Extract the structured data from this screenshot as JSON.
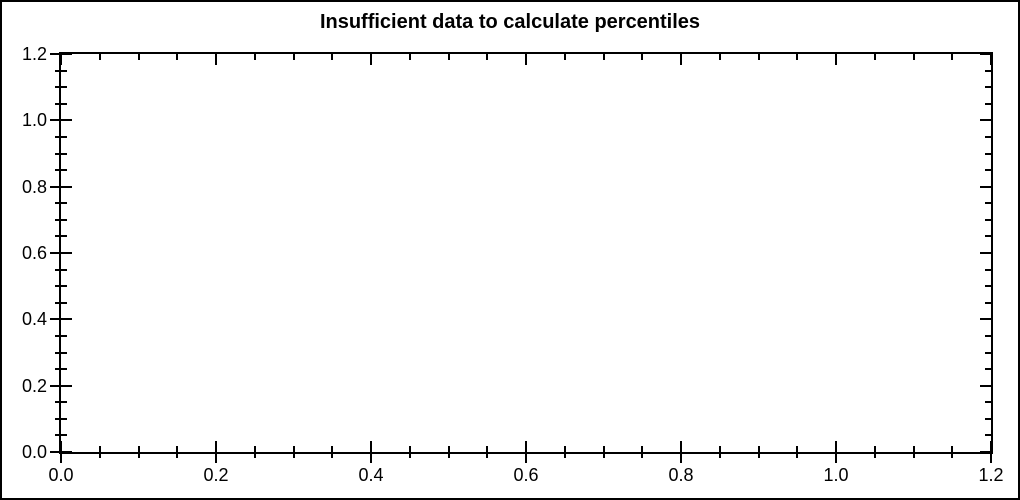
{
  "title": "Insufficient data to calculate percentiles",
  "chart_data": {
    "type": "scatter",
    "title": "Insufficient data to calculate percentiles",
    "series": [],
    "xlabel": "",
    "ylabel": "",
    "xlim": [
      0.0,
      1.2
    ],
    "ylim": [
      0.0,
      1.2
    ],
    "x_major_ticks": [
      0.0,
      0.2,
      0.4,
      0.6,
      0.8,
      1.0,
      1.2
    ],
    "y_major_ticks": [
      0.0,
      0.2,
      0.4,
      0.6,
      0.8,
      1.0,
      1.2
    ],
    "x_tick_labels": [
      "0.0",
      "0.2",
      "0.4",
      "0.6",
      "0.8",
      "1.0",
      "1.2"
    ],
    "y_tick_labels": [
      "0.0",
      "0.2",
      "0.4",
      "0.6",
      "0.8",
      "1.0",
      "1.2"
    ],
    "minor_tick_step": 0.05,
    "grid": false,
    "legend": false
  },
  "colors": {
    "background": "#ffffff",
    "axis": "#000000",
    "text": "#000000"
  }
}
